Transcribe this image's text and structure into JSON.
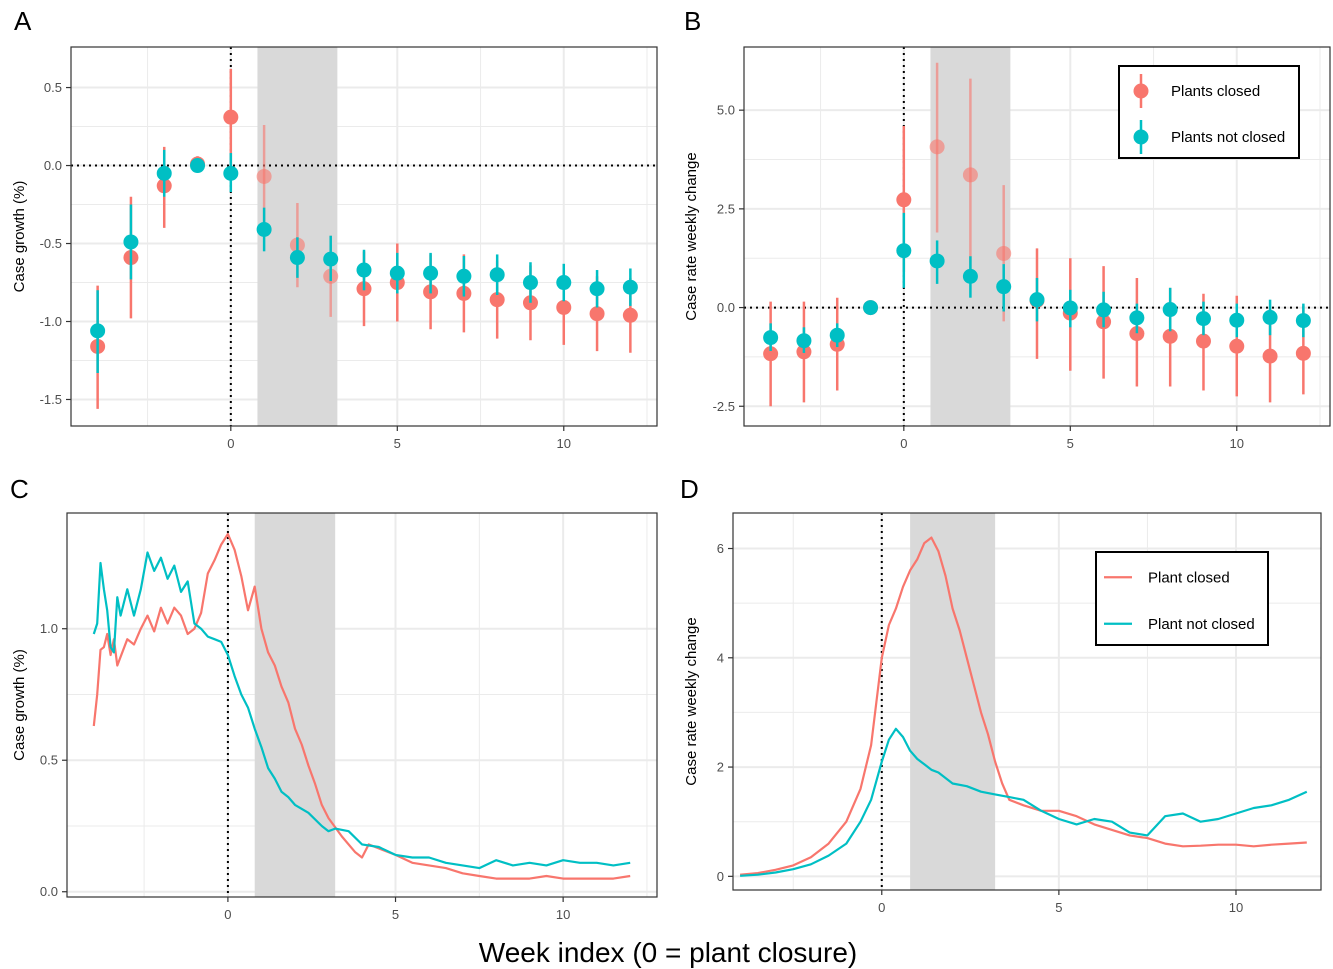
{
  "figure": {
    "xlabel": "Week index (0 = plant closure)"
  },
  "colors": {
    "closed": "#f8766d",
    "not_closed": "#00bfc4",
    "shade": "#d9d9d9",
    "grid": "#ebebeb"
  },
  "chart_data": [
    {
      "panel": "A",
      "type": "scatter",
      "ylabel": "Case growth (%)",
      "xlim": [
        -4.8,
        12.8
      ],
      "ylim": [
        -1.67,
        0.76
      ],
      "xticks": [
        0,
        5,
        10
      ],
      "yticks": [
        0.5,
        0.0,
        -0.5,
        -1.0,
        -1.5
      ],
      "ytick_labels": [
        "0.5",
        "0.0",
        "-0.5",
        "-1.0",
        "-1.5"
      ],
      "shade": [
        0.8,
        3.2
      ],
      "hline": 0,
      "vline": 0,
      "series": [
        {
          "key": "closed",
          "x": [
            -4,
            -3,
            -2,
            -1,
            0,
            1,
            2,
            3,
            4,
            5,
            6,
            7,
            8,
            9,
            10,
            11,
            12
          ],
          "y": [
            -1.16,
            -0.59,
            -0.13,
            0.01,
            0.31,
            -0.07,
            -0.51,
            -0.71,
            -0.79,
            -0.75,
            -0.81,
            -0.82,
            -0.86,
            -0.88,
            -0.91,
            -0.95,
            -0.96
          ],
          "lo": [
            -1.56,
            -0.98,
            -0.4,
            -0.04,
            -0.02,
            -0.4,
            -0.78,
            -0.97,
            -1.03,
            -1.0,
            -1.05,
            -1.07,
            -1.11,
            -1.12,
            -1.15,
            -1.19,
            -1.2
          ],
          "hi": [
            -0.77,
            -0.2,
            0.12,
            0.06,
            0.62,
            0.26,
            -0.24,
            -0.45,
            -0.55,
            -0.5,
            -0.57,
            -0.57,
            -0.61,
            -0.64,
            -0.67,
            -0.71,
            -0.72
          ]
        },
        {
          "key": "not_closed",
          "x": [
            -4,
            -3,
            -2,
            -1,
            0,
            1,
            2,
            3,
            4,
            5,
            6,
            7,
            8,
            9,
            10,
            11,
            12
          ],
          "y": [
            -1.06,
            -0.49,
            -0.05,
            0.0,
            -0.05,
            -0.41,
            -0.59,
            -0.6,
            -0.67,
            -0.69,
            -0.69,
            -0.71,
            -0.7,
            -0.75,
            -0.75,
            -0.79,
            -0.78
          ],
          "lo": [
            -1.33,
            -0.73,
            -0.2,
            -0.02,
            -0.17,
            -0.55,
            -0.72,
            -0.74,
            -0.8,
            -0.82,
            -0.82,
            -0.84,
            -0.83,
            -0.88,
            -0.87,
            -0.91,
            -0.9
          ],
          "hi": [
            -0.8,
            -0.25,
            0.1,
            0.02,
            0.08,
            -0.27,
            -0.46,
            -0.45,
            -0.54,
            -0.56,
            -0.56,
            -0.58,
            -0.57,
            -0.62,
            -0.63,
            -0.67,
            -0.66
          ]
        }
      ]
    },
    {
      "panel": "B",
      "type": "scatter",
      "ylabel": "Case rate weekly change",
      "xlim": [
        -4.8,
        12.8
      ],
      "ylim": [
        -3.0,
        6.6
      ],
      "xticks": [
        0,
        5,
        10
      ],
      "yticks": [
        5.0,
        2.5,
        0.0,
        -2.5
      ],
      "ytick_labels": [
        "5.0",
        "2.5",
        "0.0",
        "-2.5"
      ],
      "shade": [
        0.8,
        3.2
      ],
      "hline": 0,
      "vline": 0,
      "legend": {
        "position": "top-right",
        "labels": [
          "Plants closed",
          "Plants not closed"
        ]
      },
      "series": [
        {
          "key": "closed",
          "name": "Plants closed",
          "x": [
            -4,
            -3,
            -2,
            -1,
            0,
            1,
            2,
            3,
            4,
            5,
            6,
            7,
            8,
            9,
            10,
            11,
            12
          ],
          "y": [
            -1.17,
            -1.12,
            -0.93,
            0.0,
            2.73,
            4.07,
            3.36,
            1.37,
            0.18,
            -0.14,
            -0.36,
            -0.66,
            -0.73,
            -0.85,
            -0.98,
            -1.23,
            -1.16
          ],
          "lo": [
            -2.5,
            -2.4,
            -2.1,
            -0.05,
            0.9,
            1.9,
            0.9,
            -0.35,
            -1.3,
            -1.6,
            -1.8,
            -2.0,
            -2.0,
            -2.1,
            -2.25,
            -2.4,
            -2.2
          ],
          "hi": [
            0.15,
            0.15,
            0.25,
            0.05,
            4.6,
            6.2,
            5.8,
            3.1,
            1.5,
            1.25,
            1.05,
            0.75,
            0.5,
            0.35,
            0.3,
            0.0,
            0.05
          ]
        },
        {
          "key": "not_closed",
          "name": "Plants not closed",
          "x": [
            -4,
            -3,
            -2,
            -1,
            0,
            1,
            2,
            3,
            4,
            5,
            6,
            7,
            8,
            9,
            10,
            11,
            12
          ],
          "y": [
            -0.76,
            -0.84,
            -0.7,
            0.0,
            1.44,
            1.18,
            0.79,
            0.53,
            0.2,
            -0.01,
            -0.06,
            -0.26,
            -0.05,
            -0.28,
            -0.32,
            -0.25,
            -0.33
          ],
          "lo": [
            -1.1,
            -1.15,
            -1.0,
            -0.05,
            0.5,
            0.6,
            0.25,
            -0.1,
            -0.35,
            -0.5,
            -0.5,
            -0.65,
            -0.6,
            -0.7,
            -0.75,
            -0.7,
            -0.75
          ],
          "hi": [
            -0.4,
            -0.5,
            -0.4,
            0.05,
            2.4,
            1.7,
            1.3,
            1.1,
            0.75,
            0.45,
            0.4,
            0.1,
            0.5,
            0.15,
            0.1,
            0.2,
            0.1
          ]
        }
      ]
    },
    {
      "panel": "C",
      "type": "line",
      "ylabel": "Case growth (%)",
      "xlim": [
        -4.8,
        12.8
      ],
      "ylim": [
        -0.02,
        1.44
      ],
      "xticks": [
        0,
        5,
        10
      ],
      "yticks": [
        1.0,
        0.5,
        0.0
      ],
      "ytick_labels": [
        "1.0",
        "0.5",
        "0.0"
      ],
      "shade": [
        0.8,
        3.2
      ],
      "vline": 0,
      "series": [
        {
          "key": "closed",
          "x": [
            -4.0,
            -3.9,
            -3.8,
            -3.7,
            -3.6,
            -3.5,
            -3.4,
            -3.3,
            -3.0,
            -2.8,
            -2.6,
            -2.4,
            -2.2,
            -2.0,
            -1.8,
            -1.6,
            -1.4,
            -1.2,
            -1.0,
            -0.8,
            -0.6,
            -0.4,
            -0.2,
            0.0,
            0.2,
            0.4,
            0.6,
            0.8,
            1.0,
            1.2,
            1.4,
            1.6,
            1.8,
            2.0,
            2.2,
            2.4,
            2.6,
            2.8,
            3.0,
            3.4,
            3.8,
            4.0,
            4.2,
            4.6,
            5.0,
            5.5,
            6.0,
            6.5,
            7.0,
            7.5,
            8.0,
            8.5,
            9.0,
            9.5,
            10.0,
            10.5,
            11.0,
            11.5,
            12.0
          ],
          "y": [
            0.63,
            0.75,
            0.92,
            0.93,
            0.98,
            0.9,
            0.96,
            0.86,
            0.96,
            0.94,
            1.0,
            1.05,
            0.99,
            1.08,
            1.02,
            1.08,
            1.05,
            0.98,
            1.0,
            1.06,
            1.21,
            1.26,
            1.32,
            1.36,
            1.3,
            1.2,
            1.07,
            1.16,
            1.0,
            0.91,
            0.86,
            0.78,
            0.72,
            0.62,
            0.56,
            0.48,
            0.41,
            0.33,
            0.28,
            0.21,
            0.15,
            0.13,
            0.18,
            0.16,
            0.14,
            0.11,
            0.1,
            0.09,
            0.07,
            0.06,
            0.05,
            0.05,
            0.05,
            0.06,
            0.05,
            0.05,
            0.05,
            0.05,
            0.06
          ]
        },
        {
          "key": "not_closed",
          "x": [
            -4.0,
            -3.9,
            -3.8,
            -3.7,
            -3.6,
            -3.5,
            -3.4,
            -3.3,
            -3.2,
            -3.0,
            -2.8,
            -2.6,
            -2.4,
            -2.2,
            -2.0,
            -1.8,
            -1.6,
            -1.4,
            -1.2,
            -1.0,
            -0.8,
            -0.6,
            -0.4,
            -0.2,
            0.0,
            0.2,
            0.4,
            0.6,
            0.8,
            1.0,
            1.2,
            1.4,
            1.6,
            1.8,
            2.0,
            2.4,
            2.8,
            3.0,
            3.2,
            3.6,
            4.0,
            4.5,
            5.0,
            5.5,
            6.0,
            6.5,
            7.0,
            7.5,
            8.0,
            8.5,
            9.0,
            9.5,
            10.0,
            10.5,
            11.0,
            11.5,
            12.0
          ],
          "y": [
            0.98,
            1.02,
            1.25,
            1.15,
            1.07,
            0.93,
            0.91,
            1.12,
            1.05,
            1.15,
            1.05,
            1.15,
            1.29,
            1.22,
            1.27,
            1.19,
            1.24,
            1.14,
            1.18,
            1.02,
            1.0,
            0.97,
            0.96,
            0.95,
            0.9,
            0.82,
            0.75,
            0.7,
            0.62,
            0.55,
            0.47,
            0.43,
            0.38,
            0.36,
            0.33,
            0.3,
            0.25,
            0.23,
            0.24,
            0.23,
            0.18,
            0.17,
            0.14,
            0.13,
            0.13,
            0.11,
            0.1,
            0.09,
            0.12,
            0.1,
            0.11,
            0.1,
            0.12,
            0.11,
            0.11,
            0.1,
            0.11
          ]
        }
      ]
    },
    {
      "panel": "D",
      "type": "line",
      "ylabel": "Case rate weekly change",
      "xlim": [
        -4.2,
        12.4
      ],
      "ylim": [
        -0.25,
        6.65
      ],
      "xticks": [
        0,
        5,
        10
      ],
      "yticks": [
        6,
        4,
        2,
        0
      ],
      "ytick_labels": [
        "6",
        "4",
        "2",
        "0"
      ],
      "shade": [
        0.8,
        3.2
      ],
      "vline": 0,
      "legend": {
        "position": "top-right",
        "labels": [
          "Plant closed",
          "Plant not closed"
        ]
      },
      "series": [
        {
          "key": "closed",
          "name": "Plant closed",
          "x": [
            -4.0,
            -3.5,
            -3.0,
            -2.5,
            -2.0,
            -1.5,
            -1.0,
            -0.6,
            -0.3,
            0.0,
            0.2,
            0.4,
            0.6,
            0.8,
            1.0,
            1.2,
            1.4,
            1.6,
            1.8,
            2.0,
            2.2,
            2.4,
            2.6,
            2.8,
            3.0,
            3.2,
            3.4,
            3.6,
            4.0,
            4.5,
            5.0,
            5.5,
            6.0,
            6.5,
            7.0,
            7.5,
            8.0,
            8.5,
            9.0,
            9.5,
            10.0,
            10.5,
            11.0,
            11.5,
            12.0
          ],
          "y": [
            0.03,
            0.06,
            0.12,
            0.2,
            0.35,
            0.6,
            1.0,
            1.6,
            2.4,
            4.0,
            4.6,
            4.9,
            5.3,
            5.6,
            5.8,
            6.1,
            6.2,
            5.95,
            5.5,
            4.9,
            4.5,
            4.0,
            3.5,
            3.0,
            2.6,
            2.1,
            1.7,
            1.4,
            1.3,
            1.2,
            1.2,
            1.1,
            0.95,
            0.85,
            0.75,
            0.7,
            0.6,
            0.55,
            0.56,
            0.58,
            0.58,
            0.55,
            0.58,
            0.6,
            0.62
          ]
        },
        {
          "key": "not_closed",
          "name": "Plant not closed",
          "x": [
            -4.0,
            -3.5,
            -3.0,
            -2.5,
            -2.0,
            -1.5,
            -1.0,
            -0.6,
            -0.3,
            0.0,
            0.2,
            0.4,
            0.6,
            0.8,
            1.0,
            1.2,
            1.4,
            1.6,
            1.8,
            2.0,
            2.4,
            2.8,
            3.2,
            3.6,
            4.0,
            4.5,
            5.0,
            5.5,
            6.0,
            6.5,
            7.0,
            7.5,
            8.0,
            8.5,
            9.0,
            9.5,
            10.0,
            10.5,
            11.0,
            11.5,
            12.0
          ],
          "y": [
            0.01,
            0.03,
            0.07,
            0.13,
            0.22,
            0.38,
            0.6,
            1.0,
            1.4,
            2.1,
            2.5,
            2.7,
            2.55,
            2.3,
            2.15,
            2.05,
            1.95,
            1.9,
            1.8,
            1.7,
            1.65,
            1.55,
            1.5,
            1.45,
            1.4,
            1.2,
            1.05,
            0.95,
            1.05,
            1.0,
            0.8,
            0.75,
            1.1,
            1.15,
            1.0,
            1.05,
            1.15,
            1.25,
            1.3,
            1.4,
            1.55
          ]
        }
      ]
    }
  ]
}
